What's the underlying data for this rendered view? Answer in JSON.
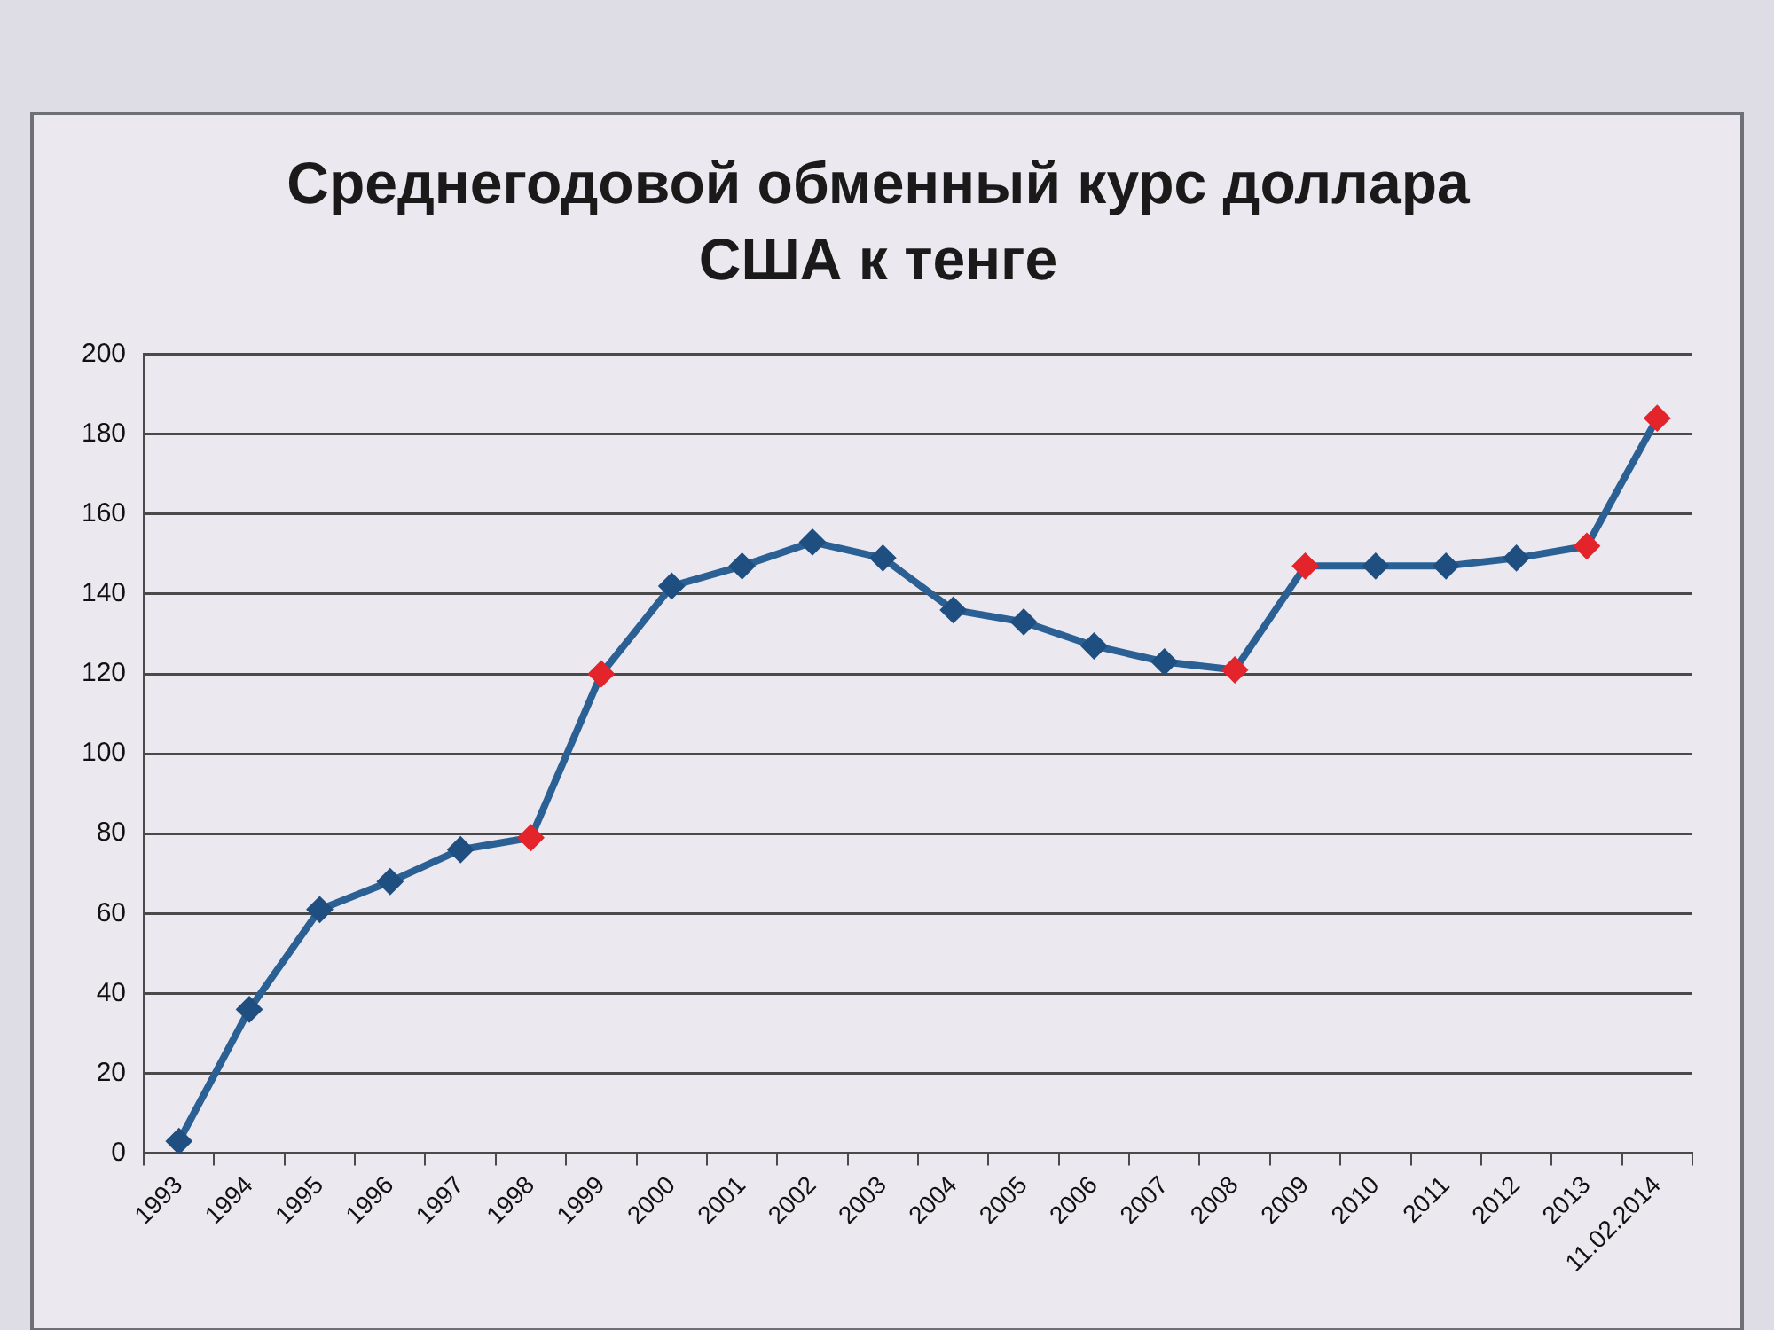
{
  "chart_data": {
    "type": "line",
    "title": "Среднегодовой обменный курс доллара США к тенге",
    "categories": [
      "1993",
      "1994",
      "1995",
      "1996",
      "1997",
      "1998",
      "1999",
      "2000",
      "2001",
      "2002",
      "2003",
      "2004",
      "2005",
      "2006",
      "2007",
      "2008",
      "2009",
      "2010",
      "2011",
      "2012",
      "2013",
      "11.02.2014"
    ],
    "series": [
      {
        "color": "#2b6094",
        "colors": [
          "#1f4f80",
          "#1f4f80",
          "#1f4f80",
          "#1f4f80",
          "#1f4f80",
          "#e3242b",
          "#e3242b",
          "#1f4f80",
          "#1f4f80",
          "#1f4f80",
          "#1f4f80",
          "#1f4f80",
          "#1f4f80",
          "#1f4f80",
          "#1f4f80",
          "#e3242b",
          "#e3242b",
          "#1f4f80",
          "#1f4f80",
          "#1f4f80",
          "#e3242b",
          "#e3242b"
        ],
        "values": [
          3,
          36,
          61,
          68,
          76,
          79,
          120,
          142,
          147,
          153,
          149,
          136,
          133,
          127,
          123,
          121,
          147,
          147,
          147,
          149,
          152,
          184
        ]
      }
    ],
    "ylim": [
      0,
      200
    ],
    "yticks": [
      0,
      20,
      40,
      60,
      80,
      100,
      120,
      140,
      160,
      180,
      200
    ],
    "grid": "y",
    "legend": false,
    "marker": "diamond",
    "line_style": "solid"
  }
}
